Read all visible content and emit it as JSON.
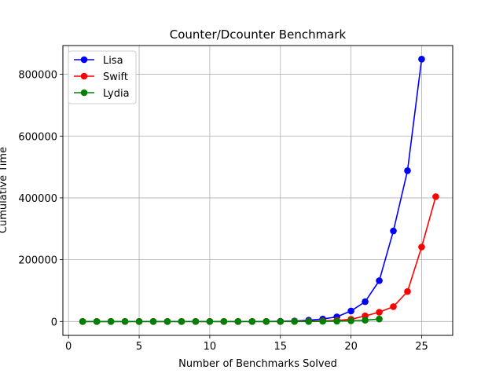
{
  "chart_data": {
    "type": "line",
    "title": "Counter/Dcounter Benchmark",
    "xlabel": "Number of Benchmarks Solved",
    "ylabel": "Cumulative Time",
    "xlim": [
      -0.4,
      27.2
    ],
    "ylim": [
      -45000,
      893000
    ],
    "xticks": [
      0,
      5,
      10,
      15,
      20,
      25
    ],
    "yticks": [
      0,
      200000,
      400000,
      600000,
      800000
    ],
    "grid": true,
    "legend_position": "top-left",
    "marker": "circle",
    "series": [
      {
        "name": "Lisa",
        "color": "#0000ff",
        "x": [
          1,
          2,
          3,
          4,
          5,
          6,
          7,
          8,
          9,
          10,
          11,
          12,
          13,
          14,
          15,
          16,
          17,
          18,
          19,
          20,
          21,
          22,
          23,
          24,
          25
        ],
        "y": [
          0,
          0,
          0,
          0,
          0,
          0,
          0,
          0,
          0,
          0,
          0,
          0,
          0,
          0,
          500,
          1500,
          4000,
          8000,
          15000,
          34000,
          64000,
          132000,
          293000,
          488000,
          849000
        ]
      },
      {
        "name": "Swift",
        "color": "#ff0000",
        "x": [
          1,
          2,
          3,
          4,
          5,
          6,
          7,
          8,
          9,
          10,
          11,
          12,
          13,
          14,
          15,
          16,
          17,
          18,
          19,
          20,
          21,
          22,
          23,
          24,
          25,
          26
        ],
        "y": [
          0,
          0,
          0,
          0,
          0,
          0,
          0,
          0,
          0,
          0,
          0,
          0,
          0,
          0,
          0,
          500,
          1000,
          2000,
          3500,
          7000,
          18000,
          30000,
          48000,
          97000,
          241000,
          404000
        ]
      },
      {
        "name": "Lydia",
        "color": "#008000",
        "x": [
          1,
          2,
          3,
          4,
          5,
          6,
          7,
          8,
          9,
          10,
          11,
          12,
          13,
          14,
          15,
          16,
          17,
          18,
          19,
          20,
          21,
          22
        ],
        "y": [
          0,
          0,
          0,
          0,
          0,
          0,
          0,
          0,
          0,
          0,
          0,
          0,
          0,
          0,
          0,
          0,
          0,
          500,
          1000,
          2000,
          4000,
          8000
        ]
      }
    ]
  }
}
